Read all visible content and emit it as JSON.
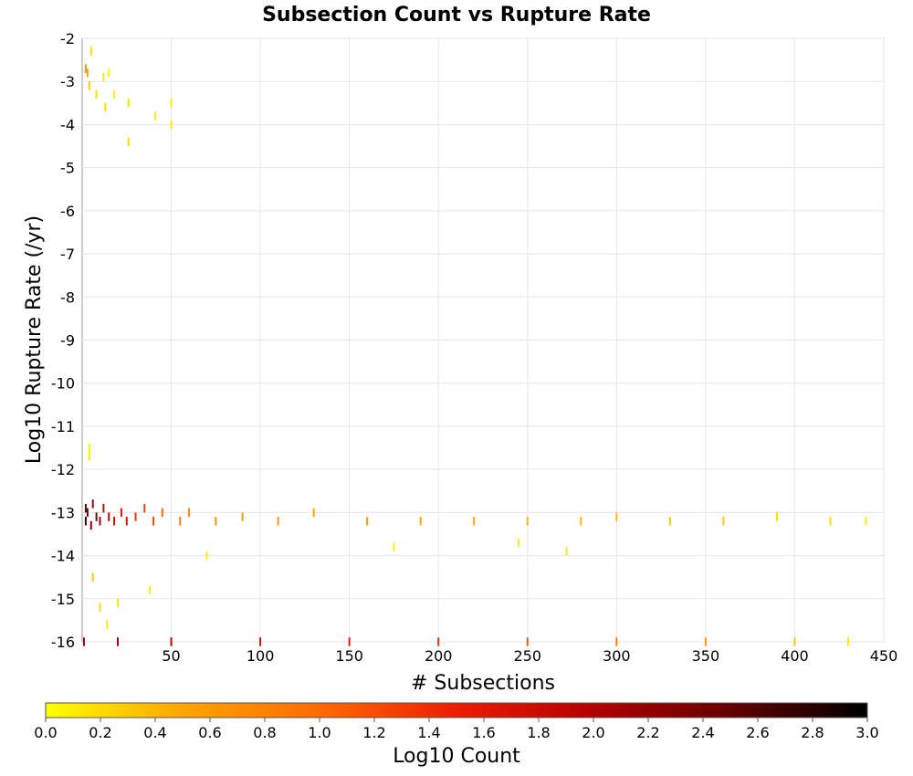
{
  "chart_data": {
    "type": "heatmap",
    "title": "Subsection Count vs Rupture Rate",
    "xlabel": "# Subsections",
    "ylabel": "Log10 Rupture Rate (/yr)",
    "xlim": [
      0,
      450
    ],
    "ylim": [
      -16,
      -2
    ],
    "x_ticks": [
      "50",
      "100",
      "150",
      "200",
      "250",
      "300",
      "350",
      "400",
      "450"
    ],
    "y_ticks": [
      "-2",
      "-3",
      "-4",
      "-5",
      "-6",
      "-7",
      "-8",
      "-9",
      "-10",
      "-11",
      "-12",
      "-13",
      "-14",
      "-15",
      "-16"
    ],
    "grid": true,
    "colorbar": {
      "label": "Log10 Count",
      "range": [
        0.0,
        3.0
      ],
      "ticks": [
        "0.0",
        "0.2",
        "0.4",
        "0.6",
        "0.8",
        "1.0",
        "1.2",
        "1.4",
        "1.6",
        "1.8",
        "2.0",
        "2.2",
        "2.4",
        "2.6",
        "2.8",
        "3.0"
      ],
      "colors": [
        "#ffff00",
        "#ffa500",
        "#ff6a00",
        "#ee1c00",
        "#b40000",
        "#650000",
        "#000000"
      ],
      "placement": "bottom"
    },
    "bin_size": {
      "x": 1,
      "y": 0.1
    },
    "cells": [
      [
        2,
        -2.7,
        0.7
      ],
      [
        3,
        -2.8,
        0.5
      ],
      [
        4,
        -3.1,
        0.3
      ],
      [
        5,
        -2.3,
        0.2
      ],
      [
        8,
        -3.3,
        0.2
      ],
      [
        12,
        -2.9,
        0.1
      ],
      [
        13,
        -3.6,
        0.2
      ],
      [
        15,
        -2.8,
        0.1
      ],
      [
        18,
        -3.3,
        0.1
      ],
      [
        26,
        -3.5,
        0.2
      ],
      [
        26,
        -4.4,
        0.2
      ],
      [
        41,
        -3.8,
        0.1
      ],
      [
        50,
        -3.5,
        0.1
      ],
      [
        50,
        -4.0,
        0.1
      ],
      [
        2,
        -12.9,
        2.6
      ],
      [
        2,
        -13.2,
        2.8
      ],
      [
        3,
        -13.0,
        2.5
      ],
      [
        5,
        -13.3,
        2.3
      ],
      [
        6,
        -12.8,
        2.2
      ],
      [
        8,
        -13.1,
        2.4
      ],
      [
        10,
        -13.2,
        2.1
      ],
      [
        12,
        -12.9,
        1.9
      ],
      [
        15,
        -13.1,
        2.0
      ],
      [
        18,
        -13.2,
        1.8
      ],
      [
        22,
        -13.0,
        1.6
      ],
      [
        25,
        -13.2,
        1.7
      ],
      [
        30,
        -13.1,
        1.4
      ],
      [
        35,
        -12.9,
        1.3
      ],
      [
        40,
        -13.2,
        1.2
      ],
      [
        45,
        -13.0,
        1.0
      ],
      [
        55,
        -13.2,
        0.9
      ],
      [
        60,
        -13.0,
        0.8
      ],
      [
        75,
        -13.2,
        0.7
      ],
      [
        90,
        -13.1,
        0.6
      ],
      [
        110,
        -13.2,
        0.6
      ],
      [
        130,
        -13.0,
        0.5
      ],
      [
        160,
        -13.2,
        0.6
      ],
      [
        190,
        -13.2,
        0.5
      ],
      [
        220,
        -13.2,
        0.5
      ],
      [
        250,
        -13.2,
        0.4
      ],
      [
        280,
        -13.2,
        0.4
      ],
      [
        300,
        -13.1,
        0.4
      ],
      [
        330,
        -13.2,
        0.3
      ],
      [
        360,
        -13.2,
        0.3
      ],
      [
        390,
        -13.1,
        0.2
      ],
      [
        420,
        -13.2,
        0.2
      ],
      [
        440,
        -13.2,
        0.1
      ],
      [
        4,
        -11.5,
        0.1
      ],
      [
        4,
        -11.7,
        0.1
      ],
      [
        6,
        -14.5,
        0.3
      ],
      [
        10,
        -15.2,
        0.2
      ],
      [
        14,
        -15.6,
        0.1
      ],
      [
        20,
        -15.1,
        0.1
      ],
      [
        38,
        -14.8,
        0.1
      ],
      [
        70,
        -14.0,
        0.1
      ],
      [
        175,
        -13.8,
        0.1
      ],
      [
        245,
        -13.7,
        0.1
      ],
      [
        272,
        -13.9,
        0.1
      ],
      [
        1,
        -16.0,
        2.1
      ],
      [
        20,
        -16.0,
        2.2
      ],
      [
        50,
        -16.0,
        2.0
      ],
      [
        100,
        -16.0,
        1.8
      ],
      [
        150,
        -16.0,
        1.6
      ],
      [
        200,
        -16.0,
        1.4
      ],
      [
        250,
        -16.0,
        1.1
      ],
      [
        300,
        -16.0,
        0.9
      ],
      [
        350,
        -16.0,
        0.6
      ],
      [
        400,
        -16.0,
        0.3
      ],
      [
        430,
        -16.0,
        0.1
      ]
    ]
  }
}
